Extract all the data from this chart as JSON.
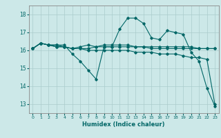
{
  "title": "",
  "xlabel": "Humidex (Indice chaleur)",
  "ylabel": "",
  "xlim": [
    -0.5,
    23.5
  ],
  "ylim": [
    12.5,
    18.5
  ],
  "yticks": [
    13,
    14,
    15,
    16,
    17,
    18
  ],
  "xticks": [
    0,
    1,
    2,
    3,
    4,
    5,
    6,
    7,
    8,
    9,
    10,
    11,
    12,
    13,
    14,
    15,
    16,
    17,
    18,
    19,
    20,
    21,
    22,
    23
  ],
  "bg_color": "#cce8e8",
  "grid_color": "#aacccc",
  "line_color": "#006666",
  "lines": [
    [
      16.1,
      16.4,
      16.3,
      16.3,
      16.2,
      16.1,
      16.2,
      16.3,
      16.2,
      16.3,
      16.3,
      16.3,
      16.3,
      16.2,
      16.2,
      16.2,
      16.2,
      16.2,
      16.2,
      16.2,
      16.2,
      16.1,
      16.1,
      16.1
    ],
    [
      16.1,
      16.4,
      16.3,
      16.3,
      16.3,
      15.8,
      15.4,
      14.9,
      14.4,
      16.2,
      16.2,
      17.2,
      17.8,
      17.8,
      17.5,
      16.7,
      16.6,
      17.1,
      17.0,
      16.9,
      15.9,
      15.4,
      13.9,
      12.9
    ],
    [
      16.1,
      16.4,
      16.3,
      16.2,
      16.2,
      16.1,
      16.1,
      16.0,
      16.0,
      16.0,
      16.0,
      16.0,
      16.0,
      15.9,
      15.9,
      15.9,
      15.8,
      15.8,
      15.8,
      15.7,
      15.6,
      15.6,
      15.5,
      13.0
    ],
    [
      16.1,
      16.4,
      16.3,
      16.2,
      16.2,
      16.1,
      16.1,
      16.1,
      16.2,
      16.2,
      16.2,
      16.2,
      16.2,
      16.2,
      16.2,
      16.1,
      16.1,
      16.1,
      16.1,
      16.1,
      16.1,
      16.1,
      16.1,
      16.1
    ]
  ]
}
